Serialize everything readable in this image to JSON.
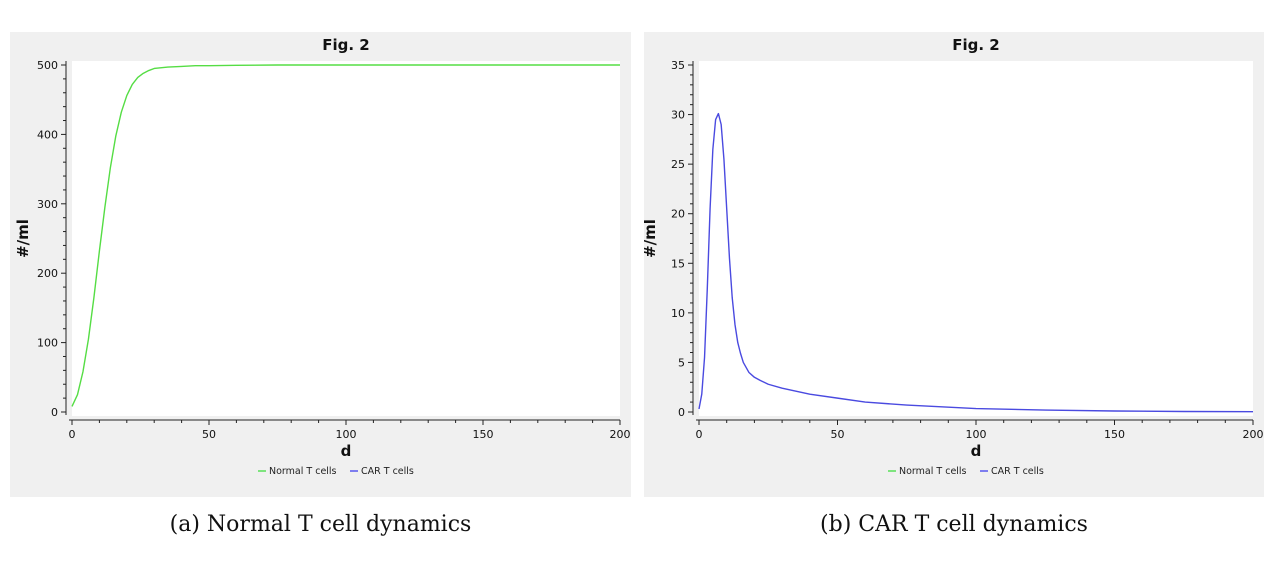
{
  "chart_data": [
    {
      "type": "line",
      "title": "Fig. 2",
      "xlabel": "d",
      "ylabel": "#/ml",
      "xlim": [
        0,
        200
      ],
      "ylim": [
        0,
        500
      ],
      "xticks": [
        0,
        50,
        100,
        150,
        200
      ],
      "yticks": [
        0,
        100,
        200,
        300,
        400,
        500
      ],
      "grid": false,
      "legend_position": "bottom-center",
      "legend": [
        {
          "name": "Normal T cells",
          "color": "#33dd33"
        },
        {
          "name": "CAR T cells",
          "color": "#3333ee"
        }
      ],
      "series": [
        {
          "name": "Normal T cells",
          "color": "#55dd44",
          "x": [
            0,
            2,
            4,
            6,
            8,
            10,
            12,
            14,
            16,
            18,
            20,
            22,
            24,
            26,
            28,
            30,
            35,
            40,
            45,
            50,
            60,
            75,
            100,
            150,
            200
          ],
          "y": [
            8,
            25,
            58,
            105,
            165,
            232,
            295,
            352,
            398,
            432,
            456,
            472,
            482,
            488,
            492,
            495,
            497,
            498,
            499,
            499,
            499.5,
            500,
            500,
            500,
            500
          ]
        }
      ],
      "caption": "(a) Normal T cell dynamics"
    },
    {
      "type": "line",
      "title": "Fig. 2",
      "xlabel": "d",
      "ylabel": "#/ml",
      "xlim": [
        0,
        200
      ],
      "ylim": [
        0,
        35
      ],
      "xticks": [
        0,
        50,
        100,
        150,
        200
      ],
      "yticks": [
        0,
        5,
        10,
        15,
        20,
        25,
        30,
        35
      ],
      "grid": false,
      "legend_position": "bottom-center",
      "legend": [
        {
          "name": "Normal T cells",
          "color": "#33dd33"
        },
        {
          "name": "CAR T cells",
          "color": "#3333ee"
        }
      ],
      "series": [
        {
          "name": "CAR T cells",
          "color": "#4a4ae0",
          "x": [
            0,
            1,
            2,
            3,
            4,
            5,
            6,
            7,
            8,
            9,
            10,
            11,
            12,
            13,
            14,
            15,
            16,
            18,
            20,
            22,
            25,
            30,
            40,
            50,
            60,
            75,
            100,
            125,
            150,
            175,
            200
          ],
          "y": [
            0.3,
            1.8,
            5.5,
            12.5,
            20.5,
            26.5,
            29.5,
            30.1,
            29.0,
            25.5,
            20.5,
            15.5,
            11.5,
            8.8,
            7.0,
            5.9,
            5.0,
            4.0,
            3.5,
            3.2,
            2.8,
            2.4,
            1.8,
            1.4,
            1.0,
            0.7,
            0.35,
            0.2,
            0.1,
            0.05,
            0.03
          ]
        }
      ],
      "caption": "(b) CAR T cell dynamics"
    }
  ]
}
